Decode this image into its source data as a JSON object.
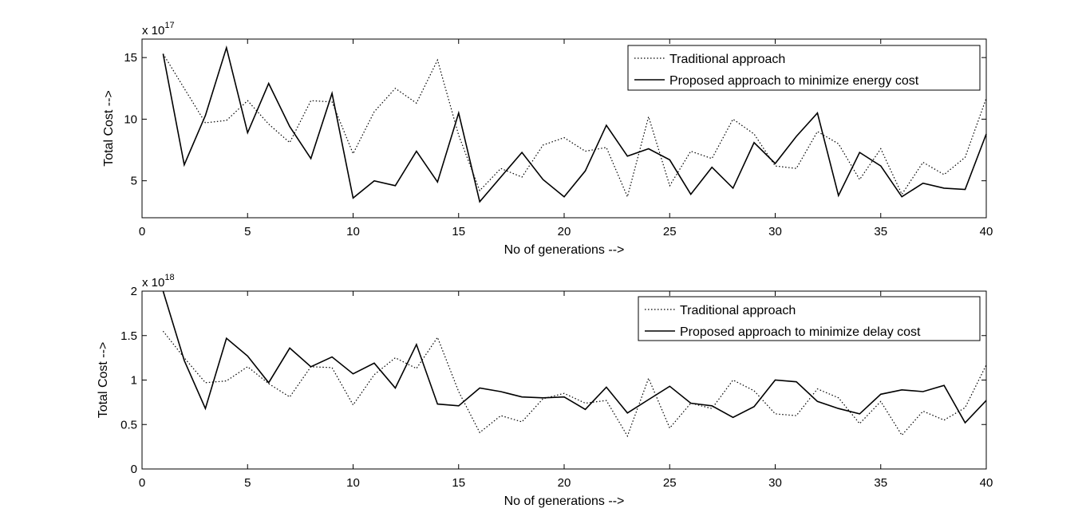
{
  "chart_data": [
    {
      "type": "line",
      "xlabel": "No of generations -->",
      "ylabel": "Total Cost -->",
      "exponent_base": "x 10",
      "exponent_power": "17",
      "xlim": [
        0,
        40
      ],
      "ylim": [
        2,
        16.5
      ],
      "xticks": [
        0,
        5,
        10,
        15,
        20,
        25,
        30,
        35,
        40
      ],
      "yticks": [
        5,
        10,
        15
      ],
      "legend_position": "top-right",
      "x": [
        1,
        2,
        3,
        4,
        5,
        6,
        7,
        8,
        9,
        10,
        11,
        12,
        13,
        14,
        15,
        16,
        17,
        18,
        19,
        20,
        21,
        22,
        23,
        24,
        25,
        26,
        27,
        28,
        29,
        30,
        31,
        32,
        33,
        34,
        35,
        36,
        37,
        38,
        39,
        40
      ],
      "series": [
        {
          "name": "Traditional approach",
          "style": "dotted",
          "values": [
            15.3,
            12.5,
            9.7,
            9.9,
            11.5,
            9.6,
            8.1,
            11.5,
            11.4,
            7.2,
            10.6,
            12.5,
            11.3,
            14.8,
            8.7,
            4.2,
            6.0,
            5.3,
            7.9,
            8.5,
            7.4,
            7.7,
            3.7,
            10.2,
            4.6,
            7.4,
            6.8,
            10.0,
            8.8,
            6.2,
            6.0,
            9.0,
            8.0,
            5.1,
            7.6,
            3.9,
            6.5,
            5.5,
            6.9,
            11.7
          ]
        },
        {
          "name": "Proposed approach to minimize energy cost",
          "style": "solid",
          "values": [
            15.3,
            6.3,
            10.3,
            15.8,
            8.9,
            12.9,
            9.4,
            6.8,
            12.1,
            3.6,
            5.0,
            4.6,
            7.4,
            4.9,
            10.5,
            3.3,
            5.3,
            7.3,
            5.1,
            3.7,
            5.8,
            9.5,
            7.0,
            7.6,
            6.7,
            3.9,
            6.1,
            4.4,
            8.1,
            6.4,
            8.6,
            10.5,
            3.8,
            7.3,
            6.2,
            3.7,
            4.8,
            4.4,
            4.3,
            8.8
          ]
        }
      ]
    },
    {
      "type": "line",
      "xlabel": "No of generations -->",
      "ylabel": "Total Cost -->",
      "exponent_base": "x 10",
      "exponent_power": "18",
      "xlim": [
        0,
        40
      ],
      "ylim": [
        0,
        2
      ],
      "xticks": [
        0,
        5,
        10,
        15,
        20,
        25,
        30,
        35,
        40
      ],
      "yticks": [
        "0",
        "0.5",
        "1",
        "1.5",
        "2"
      ],
      "legend_position": "top-right",
      "x": [
        1,
        2,
        3,
        4,
        5,
        6,
        7,
        8,
        9,
        10,
        11,
        12,
        13,
        14,
        15,
        16,
        17,
        18,
        19,
        20,
        21,
        22,
        23,
        24,
        25,
        26,
        27,
        28,
        29,
        30,
        31,
        32,
        33,
        34,
        35,
        36,
        37,
        38,
        39,
        40
      ],
      "series": [
        {
          "name": "Traditional approach",
          "style": "dotted",
          "values": [
            1.55,
            1.25,
            0.97,
            0.99,
            1.15,
            0.96,
            0.81,
            1.15,
            1.14,
            0.72,
            1.06,
            1.25,
            1.13,
            1.48,
            0.87,
            0.41,
            0.6,
            0.53,
            0.79,
            0.85,
            0.74,
            0.77,
            0.37,
            1.02,
            0.46,
            0.74,
            0.68,
            1.0,
            0.88,
            0.62,
            0.6,
            0.9,
            0.8,
            0.51,
            0.76,
            0.38,
            0.65,
            0.55,
            0.69,
            1.17
          ]
        },
        {
          "name": "Proposed approach to minimize delay cost",
          "style": "solid",
          "values": [
            2.0,
            1.22,
            0.68,
            1.47,
            1.27,
            0.97,
            1.36,
            1.15,
            1.26,
            1.07,
            1.19,
            0.91,
            1.4,
            0.73,
            0.71,
            0.91,
            0.87,
            0.81,
            0.8,
            0.81,
            0.67,
            0.92,
            0.63,
            0.78,
            0.93,
            0.74,
            0.71,
            0.58,
            0.7,
            1.0,
            0.98,
            0.76,
            0.68,
            0.62,
            0.84,
            0.89,
            0.87,
            0.94,
            0.52,
            0.77
          ]
        }
      ]
    }
  ]
}
